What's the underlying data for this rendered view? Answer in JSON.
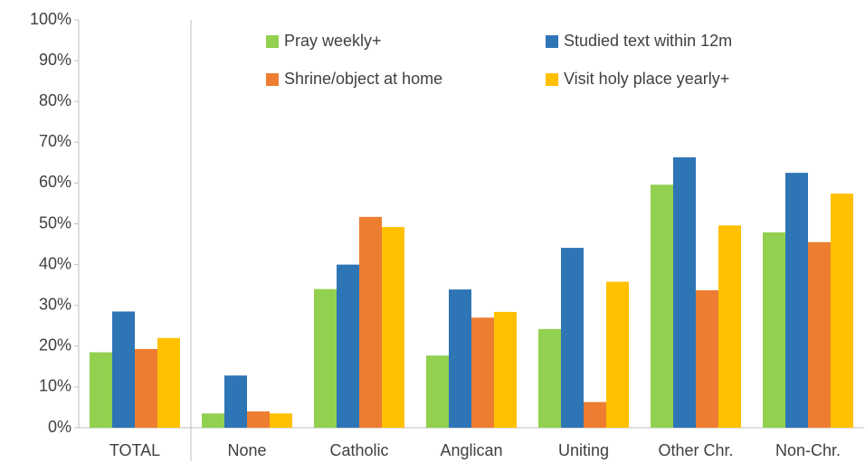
{
  "chart_data": {
    "type": "bar",
    "categories": [
      "TOTAL",
      "None",
      "Catholic",
      "Anglican",
      "Uniting",
      "Other Chr.",
      "Non-Chr."
    ],
    "series": [
      {
        "name": "Pray weekly+",
        "color": "#92d050",
        "values": [
          18.5,
          3.5,
          34,
          17.7,
          24.2,
          59.6,
          47.9
        ]
      },
      {
        "name": "Studied text within 12m",
        "color": "#2e75b6",
        "values": [
          28.5,
          12.8,
          40,
          33.9,
          44.1,
          66.3,
          62.5
        ]
      },
      {
        "name": "Shrine/object at home",
        "color": "#ed7d31",
        "values": [
          19.3,
          4,
          51.7,
          27,
          6.3,
          33.7,
          45.5
        ]
      },
      {
        "name": "Visit holy place yearly+",
        "color": "#ffc000",
        "values": [
          22,
          3.5,
          49.2,
          28.4,
          35.8,
          49.6,
          57.4
        ]
      }
    ],
    "ylim": [
      0,
      100
    ],
    "yticks": [
      {
        "value": 0,
        "label": "0%"
      },
      {
        "value": 10,
        "label": "10%"
      },
      {
        "value": 20,
        "label": "20%"
      },
      {
        "value": 30,
        "label": "30%"
      },
      {
        "value": 40,
        "label": "40%"
      },
      {
        "value": 50,
        "label": "50%"
      },
      {
        "value": 60,
        "label": "60%"
      },
      {
        "value": 70,
        "label": "70%"
      },
      {
        "value": 80,
        "label": "80%"
      },
      {
        "value": 90,
        "label": "90%"
      },
      {
        "value": 100,
        "label": "100%"
      }
    ],
    "grid": false,
    "legend": "top"
  }
}
